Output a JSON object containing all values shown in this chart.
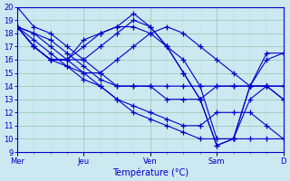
{
  "xlabel": "Température (°C)",
  "background_color": "#cce8f0",
  "plot_bg_color": "#cce8f0",
  "line_color": "#0000cc",
  "grid_color_major": "#99ccbb",
  "grid_color_minor": "#bbddcc",
  "ylim": [
    9,
    20
  ],
  "yticks": [
    9,
    10,
    11,
    12,
    13,
    14,
    15,
    16,
    17,
    18,
    19,
    20
  ],
  "day_labels": [
    "Mer",
    "Jeu",
    "Ven",
    "Sam",
    "D"
  ],
  "day_positions": [
    0,
    4,
    8,
    12,
    16
  ],
  "num_steps": 17,
  "series": [
    [
      20,
      18.5,
      18,
      17,
      16,
      15,
      14,
      14,
      14,
      14,
      14,
      14,
      14,
      14,
      14,
      14,
      13
    ],
    [
      18.5,
      18,
      17.5,
      16.5,
      15.5,
      14.5,
      14,
      14,
      14,
      13,
      13,
      13,
      14,
      14,
      14,
      14,
      13
    ],
    [
      18.5,
      18,
      17,
      16,
      15,
      14,
      13,
      12.5,
      12,
      11.5,
      11,
      11,
      12,
      12,
      12,
      11,
      10
    ],
    [
      18.5,
      17.5,
      16.5,
      15.5,
      14.5,
      14,
      13,
      12,
      11.5,
      11,
      10.5,
      10,
      10,
      10,
      10,
      10,
      10
    ],
    [
      18.5,
      17,
      16,
      15.5,
      15,
      15,
      16,
      17,
      18,
      18.5,
      18,
      17,
      16,
      15,
      14,
      14,
      14
    ],
    [
      18.5,
      17,
      16,
      16,
      16,
      17,
      18,
      19,
      18.5,
      17,
      15,
      13,
      9.5,
      10,
      13,
      14,
      14
    ],
    [
      18.5,
      17,
      16,
      16,
      17,
      18,
      18.5,
      19.5,
      18.5,
      17,
      15,
      13,
      9.5,
      10,
      14,
      16,
      16.5
    ],
    [
      18.5,
      17,
      16,
      16,
      17.5,
      18,
      18.5,
      18.5,
      18,
      17,
      16,
      14,
      10,
      10,
      14,
      16.5,
      16.5
    ]
  ]
}
